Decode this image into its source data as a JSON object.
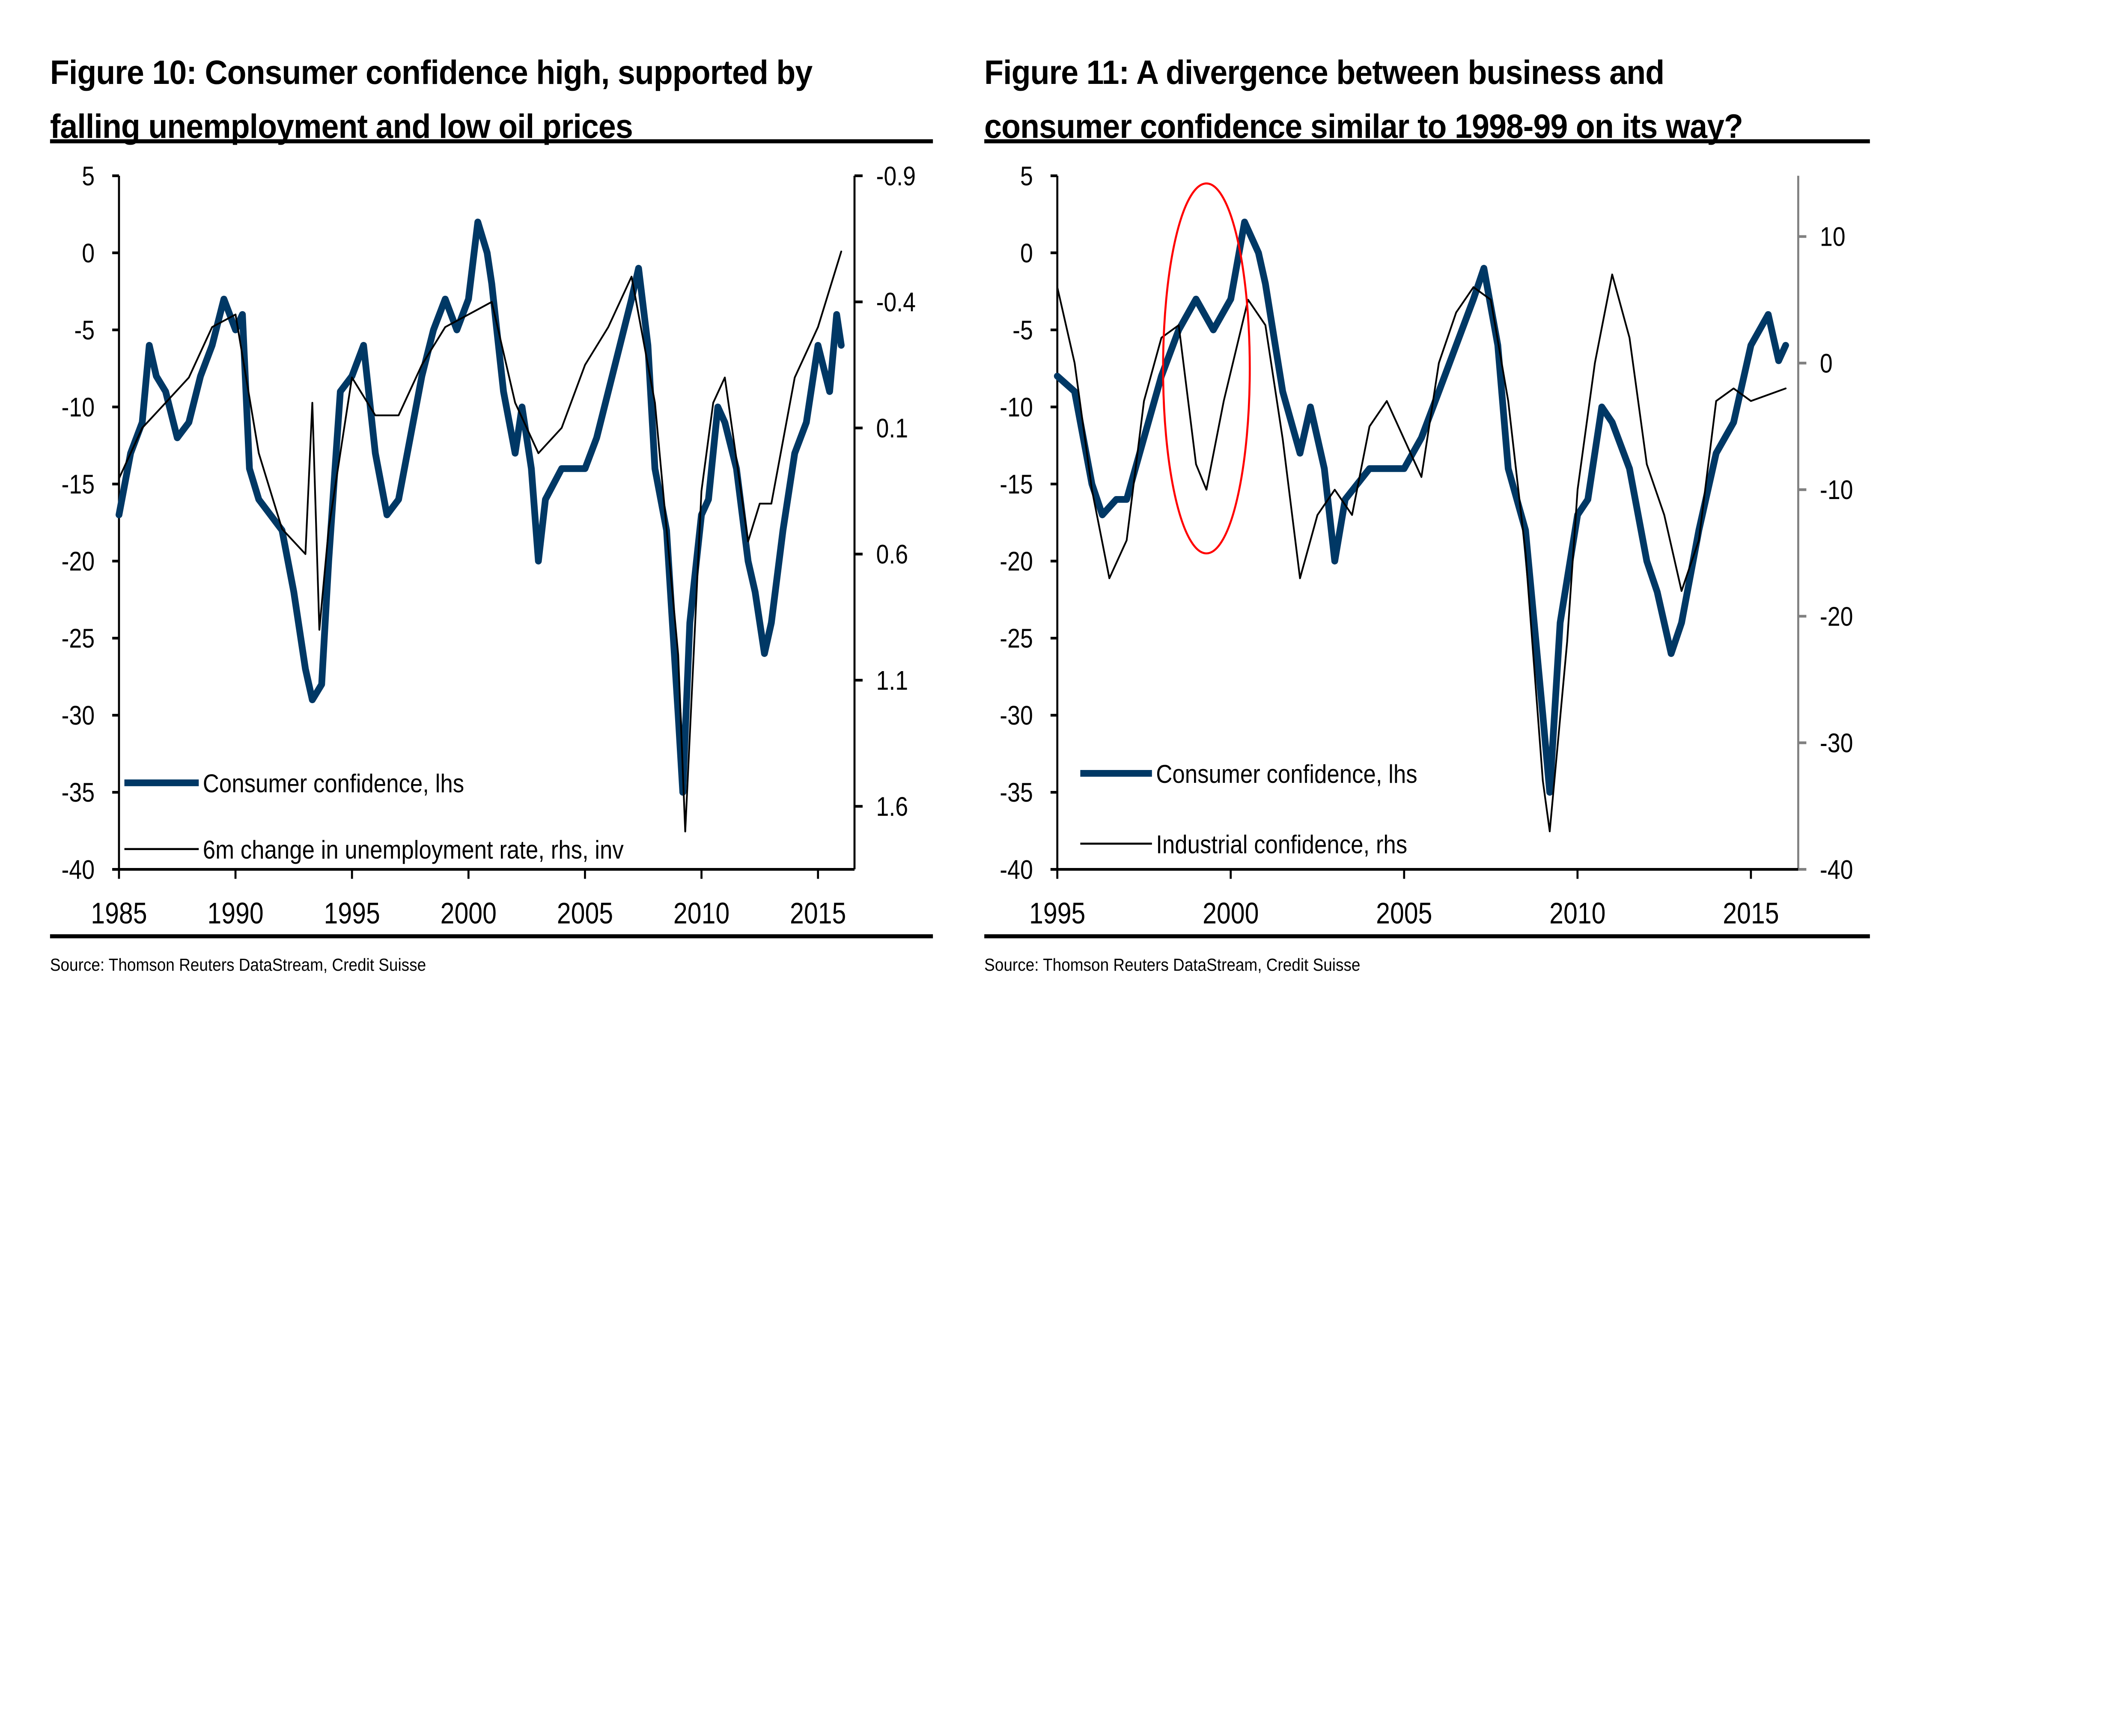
{
  "figures": [
    {
      "title_line1": "Figure 10: Consumer confidence high, supported by",
      "title_line2": "falling unemployment and low oil prices",
      "source": "Source: Thomson Reuters DataStream, Credit Suisse"
    },
    {
      "title_line1": "Figure 11: A divergence between business and",
      "title_line2": "consumer confidence similar to 1998-99 on its way?",
      "source": "Source: Thomson Reuters DataStream, Credit Suisse"
    }
  ],
  "colors": {
    "consumer": "#003865",
    "secondary": "#000000",
    "highlight": "#ff0000",
    "right_axis_fig11": "#808080"
  },
  "chart_data": [
    {
      "type": "line",
      "title": "Figure 10: Consumer confidence high, supported by falling unemployment and low oil prices",
      "xlabel": "",
      "ylabel": "",
      "xlim": [
        1985,
        2016.5
      ],
      "xticks": [
        "1985",
        "1990",
        "1995",
        "2000",
        "2005",
        "2010",
        "2015"
      ],
      "ylim_left": [
        -40,
        5
      ],
      "yticks_left": [
        "5",
        "0",
        "-5",
        "-10",
        "-15",
        "-20",
        "-25",
        "-30",
        "-35",
        "-40"
      ],
      "ylim_right": [
        -0.9,
        1.85
      ],
      "right_inverted": true,
      "yticks_right": [
        "-0.9",
        "-0.4",
        "0.1",
        "0.6",
        "1.1",
        "1.6"
      ],
      "grid": false,
      "legend_position": "bottom-left",
      "series": [
        {
          "name": "Consumer confidence, lhs",
          "axis": "left",
          "style": "thick",
          "x": [
            1985,
            1985.5,
            1986,
            1986.3,
            1986.6,
            1987,
            1987.5,
            1988,
            1988.5,
            1989,
            1989.5,
            1990,
            1990.3,
            1990.6,
            1991,
            1991.5,
            1992,
            1992.5,
            1993,
            1993.3,
            1993.7,
            1994,
            1994.5,
            1995,
            1995.5,
            1996,
            1996.5,
            1997,
            1997.5,
            1998,
            1998.5,
            1999,
            1999.5,
            2000,
            2000.4,
            2000.8,
            2001,
            2001.5,
            2002,
            2002.3,
            2002.7,
            2003,
            2003.3,
            2004,
            2005,
            2005.5,
            2006,
            2006.5,
            2007,
            2007.3,
            2007.7,
            2008,
            2008.5,
            2009,
            2009.2,
            2009.5,
            2010,
            2010.3,
            2010.7,
            2011,
            2011.5,
            2012,
            2012.3,
            2012.7,
            2013,
            2013.5,
            2014,
            2014.5,
            2015,
            2015.5,
            2015.8,
            2016
          ],
          "y": [
            -17,
            -13,
            -11,
            -6,
            -8,
            -9,
            -12,
            -11,
            -8,
            -6,
            -3,
            -5,
            -4,
            -14,
            -16,
            -17,
            -18,
            -22,
            -27,
            -29,
            -28,
            -20,
            -9,
            -8,
            -6,
            -13,
            -17,
            -16,
            -12,
            -8,
            -5,
            -3,
            -5,
            -3,
            2,
            0,
            -2,
            -9,
            -13,
            -10,
            -14,
            -20,
            -16,
            -14,
            -14,
            -12,
            -9,
            -6,
            -3,
            -1,
            -6,
            -14,
            -18,
            -30,
            -35,
            -24,
            -17,
            -16,
            -10,
            -11,
            -14,
            -20,
            -22,
            -26,
            -24,
            -18,
            -13,
            -11,
            -6,
            -9,
            -4,
            -6
          ]
        },
        {
          "name": "6m change in unemployment rate, rhs, inv",
          "axis": "right",
          "style": "thin",
          "x": [
            1985,
            1986,
            1987,
            1988,
            1989,
            1990,
            1991,
            1992,
            1993,
            1993.3,
            1993.6,
            1994,
            1995,
            1996,
            1997,
            1998,
            1999,
            2000,
            2001,
            2002,
            2003,
            2004,
            2005,
            2006,
            2007,
            2008,
            2009,
            2009.3,
            2010,
            2010.5,
            2011,
            2012,
            2012.5,
            2013,
            2014,
            2015,
            2016
          ],
          "y": [
            0.3,
            0.1,
            0.0,
            -0.1,
            -0.3,
            -0.35,
            0.2,
            0.5,
            0.6,
            0.0,
            0.9,
            0.5,
            -0.1,
            0.05,
            0.05,
            -0.15,
            -0.3,
            -0.35,
            -0.4,
            0.0,
            0.2,
            0.1,
            -0.15,
            -0.3,
            -0.5,
            0.0,
            1.0,
            1.7,
            0.35,
            0.0,
            -0.1,
            0.55,
            0.4,
            0.4,
            -0.1,
            -0.3,
            -0.6
          ]
        }
      ]
    },
    {
      "type": "line",
      "title": "Figure 11: A divergence between business and consumer confidence similar to 1998-99 on its way?",
      "xlabel": "",
      "ylabel": "",
      "xlim": [
        1995,
        2016.5
      ],
      "xticks": [
        "1995",
        "2000",
        "2005",
        "2010",
        "2015"
      ],
      "ylim_left": [
        -40,
        5
      ],
      "yticks_left": [
        "5",
        "0",
        "-5",
        "-10",
        "-15",
        "-20",
        "-25",
        "-30",
        "-35",
        "-40"
      ],
      "ylim_right": [
        -40,
        14.8
      ],
      "yticks_right": [
        "10",
        "0",
        "-10",
        "-20",
        "-30",
        "-40"
      ],
      "grid": false,
      "legend_position": "bottom-left",
      "annotation": {
        "type": "ellipse",
        "center_year": 1999.3,
        "center_lhs": -7.5,
        "radius_years": 1.25,
        "radius_lhs": 12,
        "label": "1998-99 divergence highlight"
      },
      "series": [
        {
          "name": "Consumer confidence, lhs",
          "axis": "left",
          "style": "thick",
          "x": [
            1995,
            1995.5,
            1996,
            1996.3,
            1996.7,
            1997,
            1997.5,
            1998,
            1998.5,
            1999,
            1999.5,
            2000,
            2000.4,
            2000.8,
            2001,
            2001.5,
            2002,
            2002.3,
            2002.7,
            2003,
            2003.3,
            2004,
            2005,
            2005.5,
            2006,
            2006.5,
            2007,
            2007.3,
            2007.7,
            2008,
            2008.5,
            2009,
            2009.2,
            2009.5,
            2010,
            2010.3,
            2010.7,
            2011,
            2011.5,
            2012,
            2012.3,
            2012.7,
            2013,
            2013.5,
            2014,
            2014.5,
            2015,
            2015.5,
            2015.8,
            2016
          ],
          "y": [
            -8,
            -9,
            -15,
            -17,
            -16,
            -16,
            -12,
            -8,
            -5,
            -3,
            -5,
            -3,
            2,
            0,
            -2,
            -9,
            -13,
            -10,
            -14,
            -20,
            -16,
            -14,
            -14,
            -12,
            -9,
            -6,
            -3,
            -1,
            -6,
            -14,
            -18,
            -30,
            -35,
            -24,
            -17,
            -16,
            -10,
            -11,
            -14,
            -20,
            -22,
            -26,
            -24,
            -18,
            -13,
            -11,
            -6,
            -4,
            -7,
            -6
          ]
        },
        {
          "name": "Industrial confidence, rhs",
          "axis": "right",
          "style": "thin",
          "x": [
            1995,
            1995.5,
            1996,
            1996.5,
            1997,
            1997.5,
            1998,
            1998.5,
            1999,
            1999.3,
            1999.8,
            2000.5,
            2001,
            2001.5,
            2002,
            2002.5,
            2003,
            2003.5,
            2004,
            2004.5,
            2005,
            2005.5,
            2006,
            2006.5,
            2007,
            2007.5,
            2008,
            2008.5,
            2009,
            2009.2,
            2009.7,
            2010,
            2010.5,
            2011,
            2011.5,
            2012,
            2012.5,
            2013,
            2013.5,
            2014,
            2014.5,
            2015,
            2016
          ],
          "y": [
            6,
            0,
            -10,
            -17,
            -14,
            -3,
            2,
            3,
            -8,
            -10,
            -3,
            5,
            3,
            -6,
            -17,
            -12,
            -10,
            -12,
            -5,
            -3,
            -6,
            -9,
            0,
            4,
            6,
            5,
            -3,
            -15,
            -33,
            -37,
            -22,
            -10,
            0,
            7,
            2,
            -8,
            -12,
            -18,
            -14,
            -3,
            -2,
            -3,
            -2
          ]
        }
      ]
    }
  ]
}
